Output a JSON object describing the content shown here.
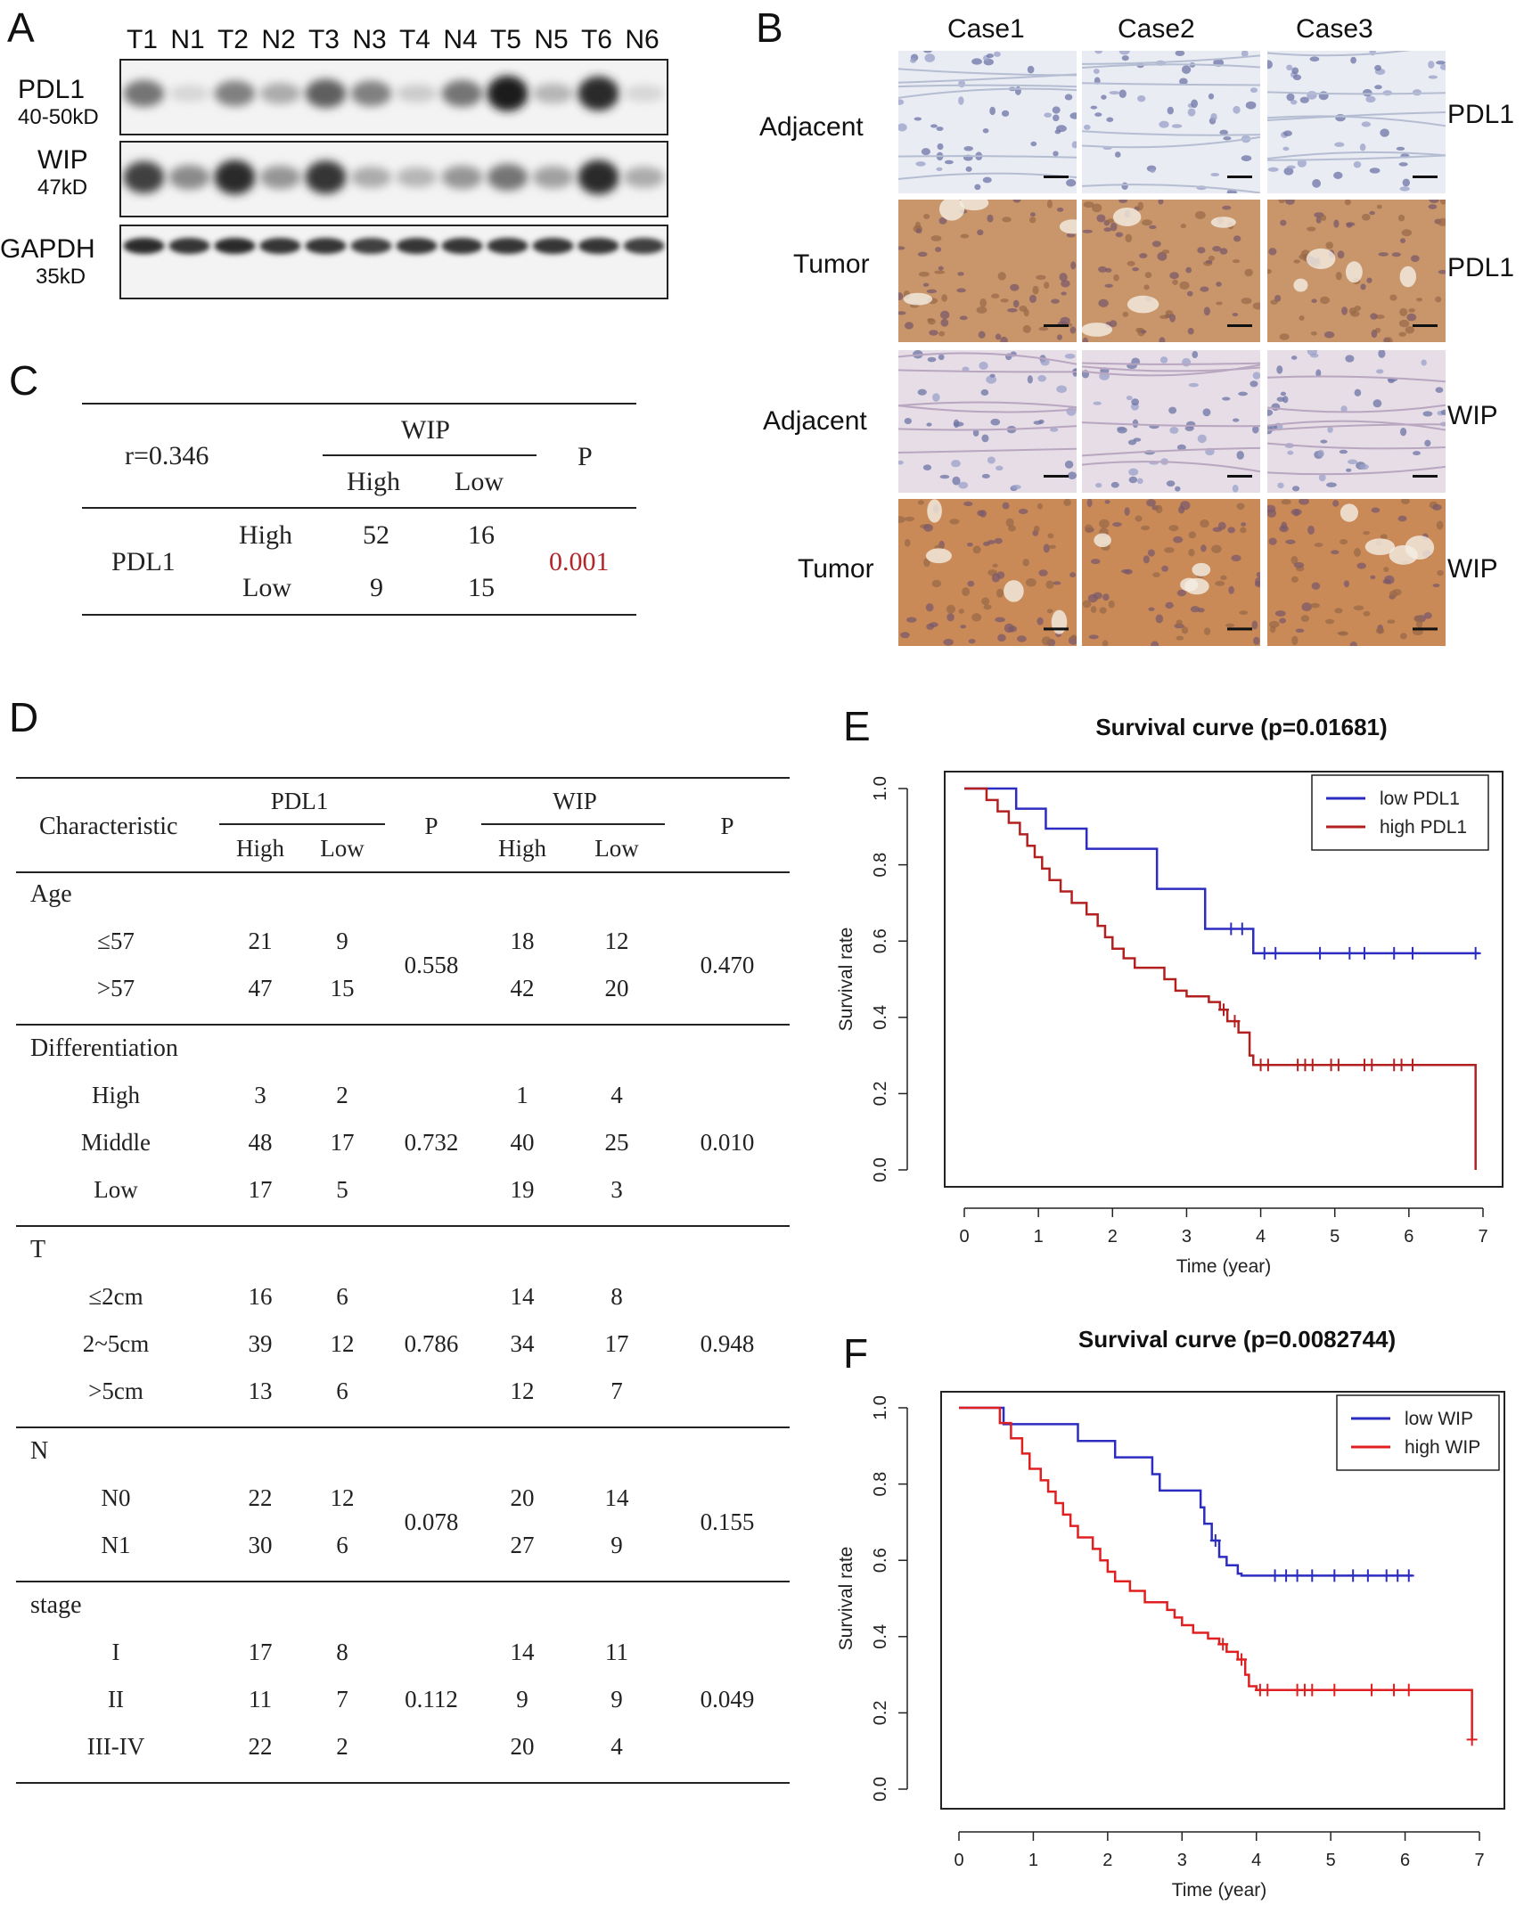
{
  "panels": {
    "A": "A",
    "B": "B",
    "C": "C",
    "D": "D",
    "E": "E",
    "F": "F"
  },
  "blot": {
    "lanes": [
      "T1",
      "N1",
      "T2",
      "N2",
      "T3",
      "N3",
      "T4",
      "N4",
      "T5",
      "N5",
      "T6",
      "N6"
    ],
    "rows": [
      {
        "name": "PDL1",
        "size": "40-50kD",
        "intensity": [
          0.55,
          0.1,
          0.5,
          0.3,
          0.65,
          0.5,
          0.15,
          0.55,
          0.95,
          0.25,
          0.9,
          0.1
        ]
      },
      {
        "name": "WIP",
        "size": "47kD",
        "intensity": [
          0.8,
          0.45,
          0.9,
          0.4,
          0.85,
          0.3,
          0.25,
          0.4,
          0.55,
          0.35,
          0.9,
          0.3
        ]
      },
      {
        "name": "GAPDH",
        "size": "35kD",
        "intensity": [
          0.9,
          0.85,
          0.9,
          0.85,
          0.85,
          0.8,
          0.85,
          0.85,
          0.85,
          0.85,
          0.85,
          0.8
        ]
      }
    ]
  },
  "ihc": {
    "columns": [
      "Case1",
      "Case2",
      "Case3"
    ],
    "rows": [
      {
        "tissue": "Adjacent",
        "marker": "PDL1"
      },
      {
        "tissue": "Tumor",
        "marker": "PDL1"
      },
      {
        "tissue": "Adjacent",
        "marker": "WIP"
      },
      {
        "tissue": "Tumor",
        "marker": "WIP"
      }
    ],
    "colors": {
      "adjacent": "#e9ecf3",
      "tumor_pdl1": "#c9966b",
      "adjacent_wip": "#e6dde6",
      "tumor_wip": "#c98a58"
    }
  },
  "tableC": {
    "r": "r=0.346",
    "wip_header": "WIP",
    "p_header": "P",
    "high": "High",
    "low": "Low",
    "row_label": "PDL1",
    "values": [
      [
        "52",
        "16"
      ],
      [
        "9",
        "15"
      ]
    ],
    "p_value": "0.001"
  },
  "tableD": {
    "characteristic": "Characteristic",
    "pdl1": "PDL1",
    "wip": "WIP",
    "p": "P",
    "high": "High",
    "low": "Low",
    "groups": [
      {
        "name": "Age",
        "p_pdl1": "0.558",
        "p_wip": "0.470",
        "wip_sig": false,
        "rows": [
          {
            "label": "≤57",
            "v": [
              "21",
              "9",
              "18",
              "12"
            ]
          },
          {
            "label": ">57",
            "v": [
              "47",
              "15",
              "42",
              "20"
            ]
          }
        ]
      },
      {
        "name": "Differentiation",
        "p_pdl1": "0.732",
        "p_wip": "0.010",
        "wip_sig": true,
        "rows": [
          {
            "label": "High",
            "v": [
              "3",
              "2",
              "1",
              "4"
            ]
          },
          {
            "label": "Middle",
            "v": [
              "48",
              "17",
              "40",
              "25"
            ]
          },
          {
            "label": "Low",
            "v": [
              "17",
              "5",
              "19",
              "3"
            ]
          }
        ]
      },
      {
        "name": "T",
        "p_pdl1": "0.786",
        "p_wip": "0.948",
        "wip_sig": false,
        "rows": [
          {
            "label": "≤2cm",
            "v": [
              "16",
              "6",
              "14",
              "8"
            ]
          },
          {
            "label": "2~5cm",
            "v": [
              "39",
              "12",
              "34",
              "17"
            ]
          },
          {
            "label": ">5cm",
            "v": [
              "13",
              "6",
              "12",
              "7"
            ]
          }
        ]
      },
      {
        "name": "N",
        "p_pdl1": "0.078",
        "p_wip": "0.155",
        "wip_sig": false,
        "rows": [
          {
            "label": "N0",
            "v": [
              "22",
              "12",
              "20",
              "14"
            ]
          },
          {
            "label": "N1",
            "v": [
              "30",
              "6",
              "27",
              "9"
            ]
          }
        ]
      },
      {
        "name": "stage",
        "p_pdl1": "0.112",
        "p_wip": "0.049",
        "wip_sig": true,
        "rows": [
          {
            "label": "I",
            "v": [
              "17",
              "8",
              "14",
              "11"
            ]
          },
          {
            "label": "II",
            "v": [
              "11",
              "7",
              "9",
              "9"
            ]
          },
          {
            "label": "III-IV",
            "v": [
              "22",
              "2",
              "20",
              "4"
            ]
          }
        ]
      }
    ]
  },
  "chart_data": [
    {
      "type": "line",
      "title": "Survival curve (p=0.01681)",
      "xlabel": "Time (year)",
      "ylabel": "Survival rate",
      "xlim": [
        0,
        7
      ],
      "ylim": [
        0,
        1
      ],
      "xticks": [
        "0",
        "1",
        "2",
        "3",
        "4",
        "5",
        "6",
        "7"
      ],
      "yticks": [
        "0.0",
        "0.2",
        "0.4",
        "0.6",
        "0.8",
        "1.0"
      ],
      "legend_position": "top-right",
      "series": [
        {
          "name": "low PDL1",
          "color": "#2c2cc0",
          "steps": [
            [
              0,
              1.0
            ],
            [
              0.7,
              0.947
            ],
            [
              1.1,
              0.895
            ],
            [
              1.65,
              0.842
            ],
            [
              2.6,
              0.737
            ],
            [
              3.25,
              0.632
            ],
            [
              3.9,
              0.568
            ],
            [
              6.95,
              0.568
            ]
          ],
          "censor": [
            3.6,
            3.75,
            4.05,
            4.2,
            4.8,
            5.2,
            5.4,
            5.8,
            6.05,
            6.9
          ]
        },
        {
          "name": "high PDL1",
          "color": "#b32020",
          "steps": [
            [
              0,
              1.0
            ],
            [
              0.3,
              0.97
            ],
            [
              0.45,
              0.94
            ],
            [
              0.6,
              0.91
            ],
            [
              0.75,
              0.88
            ],
            [
              0.85,
              0.85
            ],
            [
              0.95,
              0.82
            ],
            [
              1.05,
              0.79
            ],
            [
              1.15,
              0.76
            ],
            [
              1.3,
              0.73
            ],
            [
              1.45,
              0.7
            ],
            [
              1.65,
              0.67
            ],
            [
              1.8,
              0.64
            ],
            [
              1.9,
              0.61
            ],
            [
              2.0,
              0.58
            ],
            [
              2.15,
              0.555
            ],
            [
              2.3,
              0.53
            ],
            [
              2.7,
              0.5
            ],
            [
              2.85,
              0.47
            ],
            [
              3.0,
              0.455
            ],
            [
              3.3,
              0.44
            ],
            [
              3.45,
              0.42
            ],
            [
              3.55,
              0.39
            ],
            [
              3.7,
              0.36
            ],
            [
              3.85,
              0.3
            ],
            [
              3.9,
              0.275
            ],
            [
              6.9,
              0.275
            ],
            [
              6.9,
              0.0
            ]
          ],
          "censor": [
            3.5,
            3.65,
            4.0,
            4.1,
            4.5,
            4.6,
            4.7,
            4.95,
            5.05,
            5.4,
            5.5,
            5.8,
            5.9,
            6.05
          ]
        }
      ]
    },
    {
      "type": "line",
      "title": "Survival curve (p=0.0082744)",
      "xlabel": "Time (year)",
      "ylabel": "Survival rate",
      "xlim": [
        0,
        7
      ],
      "ylim": [
        0,
        1
      ],
      "xticks": [
        "0",
        "1",
        "2",
        "3",
        "4",
        "5",
        "6",
        "7"
      ],
      "yticks": [
        "0.0",
        "0.2",
        "0.4",
        "0.6",
        "0.8",
        "1.0"
      ],
      "legend_position": "top-right",
      "series": [
        {
          "name": "low WIP",
          "color": "#2c2cc0",
          "steps": [
            [
              0,
              1.0
            ],
            [
              0.6,
              0.957
            ],
            [
              1.6,
              0.913
            ],
            [
              2.1,
              0.87
            ],
            [
              2.6,
              0.826
            ],
            [
              2.7,
              0.783
            ],
            [
              3.25,
              0.739
            ],
            [
              3.3,
              0.696
            ],
            [
              3.4,
              0.652
            ],
            [
              3.5,
              0.609
            ],
            [
              3.6,
              0.587
            ],
            [
              3.75,
              0.565
            ],
            [
              3.8,
              0.56
            ],
            [
              6.1,
              0.56
            ]
          ],
          "censor": [
            3.45,
            4.25,
            4.4,
            4.55,
            4.75,
            5.05,
            5.3,
            5.5,
            5.75,
            5.9,
            6.05
          ]
        },
        {
          "name": "high WIP",
          "color": "#e02020",
          "steps": [
            [
              0,
              1.0
            ],
            [
              0.55,
              0.96
            ],
            [
              0.7,
              0.92
            ],
            [
              0.85,
              0.88
            ],
            [
              0.95,
              0.84
            ],
            [
              1.1,
              0.81
            ],
            [
              1.2,
              0.78
            ],
            [
              1.3,
              0.75
            ],
            [
              1.4,
              0.72
            ],
            [
              1.5,
              0.69
            ],
            [
              1.6,
              0.66
            ],
            [
              1.8,
              0.63
            ],
            [
              1.9,
              0.6
            ],
            [
              2.0,
              0.57
            ],
            [
              2.1,
              0.545
            ],
            [
              2.3,
              0.52
            ],
            [
              2.5,
              0.49
            ],
            [
              2.8,
              0.47
            ],
            [
              2.9,
              0.45
            ],
            [
              3.0,
              0.43
            ],
            [
              3.15,
              0.41
            ],
            [
              3.35,
              0.395
            ],
            [
              3.5,
              0.38
            ],
            [
              3.6,
              0.36
            ],
            [
              3.75,
              0.34
            ],
            [
              3.85,
              0.3
            ],
            [
              3.9,
              0.27
            ],
            [
              4.0,
              0.26
            ],
            [
              6.9,
              0.26
            ],
            [
              6.9,
              0.13
            ]
          ],
          "censor": [
            3.55,
            3.8,
            4.05,
            4.15,
            4.55,
            4.65,
            4.75,
            5.05,
            5.55,
            5.85,
            6.05,
            6.9
          ]
        }
      ]
    }
  ]
}
